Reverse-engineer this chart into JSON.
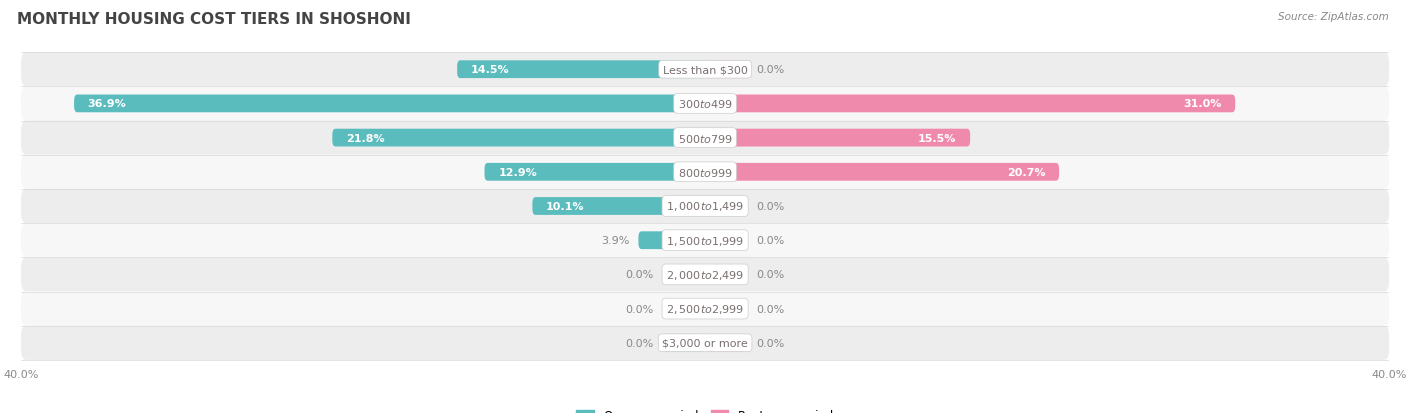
{
  "title": "MONTHLY HOUSING COST TIERS IN SHOSHONI",
  "source": "Source: ZipAtlas.com",
  "categories": [
    "Less than $300",
    "$300 to $499",
    "$500 to $799",
    "$800 to $999",
    "$1,000 to $1,499",
    "$1,500 to $1,999",
    "$2,000 to $2,499",
    "$2,500 to $2,999",
    "$3,000 or more"
  ],
  "owner_values": [
    14.5,
    36.9,
    21.8,
    12.9,
    10.1,
    3.9,
    0.0,
    0.0,
    0.0
  ],
  "renter_values": [
    0.0,
    31.0,
    15.5,
    20.7,
    0.0,
    0.0,
    0.0,
    0.0,
    0.0
  ],
  "owner_color": "#5bbcbe",
  "renter_color": "#f08aac",
  "axis_limit": 40.0,
  "bar_height": 0.52,
  "stub_value": 2.5,
  "row_bg_colors": [
    "#ededee",
    "#f7f7f8"
  ],
  "label_center_color": "#7a6f6f",
  "value_inside_color": "#ffffff",
  "value_outside_color": "#888888",
  "title_fontsize": 11,
  "source_fontsize": 7.5,
  "label_fontsize": 8,
  "value_fontsize": 8,
  "axis_label_fontsize": 8,
  "legend_fontsize": 8.5,
  "inside_threshold": 8.0
}
